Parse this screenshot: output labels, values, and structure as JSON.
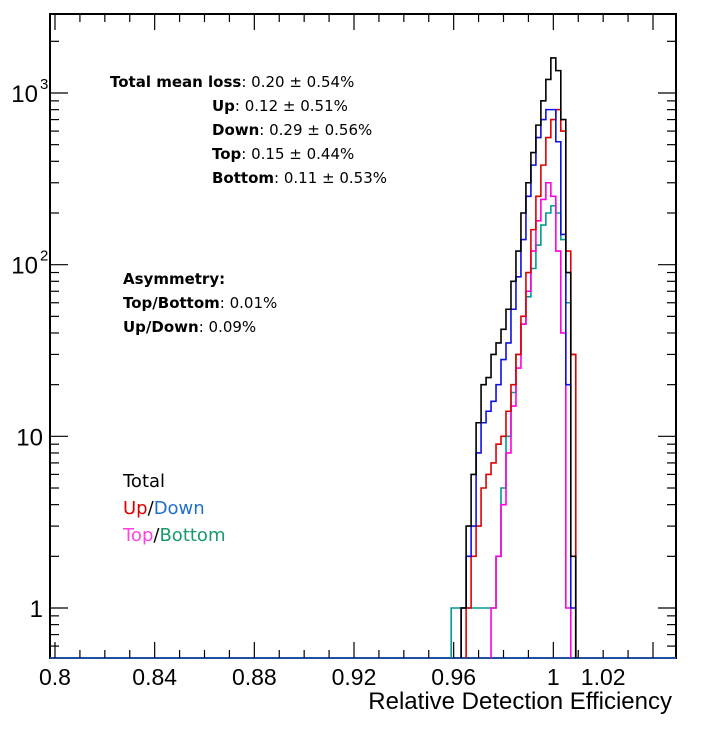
{
  "chart_data": {
    "type": "line",
    "title": "",
    "xlabel": "Relative Detection Efficiency",
    "ylabel": "",
    "xlim": [
      0.8,
      1.04
    ],
    "ylim": [
      0.55,
      2800
    ],
    "y_scale": "log",
    "x_ticks": [
      "0.8",
      "0.84",
      "0.88",
      "0.92",
      "0.96",
      "1",
      "1.02"
    ],
    "x_tick_values": [
      0.8,
      0.84,
      0.88,
      0.92,
      0.96,
      1.0,
      1.02
    ],
    "y_ticks": [
      {
        "value": 1,
        "label": "1",
        "exp": ""
      },
      {
        "value": 10,
        "label": "10",
        "exp": ""
      },
      {
        "value": 100,
        "label": "10",
        "exp": "2"
      },
      {
        "value": 1000,
        "label": "10",
        "exp": "3"
      }
    ],
    "grid": false,
    "legend_placement": "middle-left",
    "series": [
      {
        "key": "total",
        "color": "#000000",
        "x": [
          0.964,
          0.966,
          0.968,
          0.97,
          0.972,
          0.974,
          0.976,
          0.978,
          0.98,
          0.982,
          0.984,
          0.986,
          0.988,
          0.99,
          0.992,
          0.994,
          0.996,
          0.998,
          1.0,
          1.002,
          1.004,
          1.006,
          1.008
        ],
        "y": [
          1,
          3,
          6,
          12,
          20,
          22,
          30,
          35,
          42,
          55,
          80,
          120,
          200,
          300,
          450,
          650,
          900,
          1200,
          1600,
          1350,
          700,
          90,
          2
        ]
      },
      {
        "key": "up",
        "color": "#e00000",
        "x": [
          0.966,
          0.968,
          0.97,
          0.972,
          0.974,
          0.976,
          0.978,
          0.98,
          0.982,
          0.984,
          0.986,
          0.988,
          0.99,
          0.992,
          0.994,
          0.996,
          0.998,
          1.0,
          1.002,
          1.004,
          1.006,
          1.008
        ],
        "y": [
          1,
          2,
          3,
          5,
          6,
          7,
          9,
          10,
          14,
          20,
          30,
          50,
          90,
          160,
          250,
          380,
          550,
          700,
          800,
          600,
          120,
          30
        ]
      },
      {
        "key": "down",
        "color": "#1010e0",
        "x": [
          0.964,
          0.966,
          0.968,
          0.97,
          0.972,
          0.974,
          0.976,
          0.978,
          0.98,
          0.982,
          0.984,
          0.986,
          0.988,
          0.99,
          0.992,
          0.994,
          0.996,
          0.998,
          1.0,
          1.002,
          1.004,
          1.006,
          1.008
        ],
        "y": [
          1,
          2,
          3,
          8,
          12,
          14,
          16,
          20,
          28,
          35,
          55,
          85,
          140,
          250,
          380,
          550,
          700,
          800,
          800,
          520,
          150,
          20,
          1
        ]
      },
      {
        "key": "top",
        "color": "#ff00e0",
        "x": [
          0.976,
          0.978,
          0.98,
          0.982,
          0.984,
          0.986,
          0.988,
          0.99,
          0.992,
          0.994,
          0.996,
          0.998,
          1.0,
          1.002,
          1.004,
          1.006
        ],
        "y": [
          1,
          2,
          4,
          8,
          15,
          25,
          45,
          70,
          120,
          180,
          240,
          300,
          250,
          120,
          40,
          1
        ]
      },
      {
        "key": "bottom",
        "color": "#009a90",
        "x": [
          0.96,
          0.962,
          0.964,
          0.966,
          0.968,
          0.97,
          0.972,
          0.974,
          0.976,
          0.978,
          0.98,
          0.982,
          0.984,
          0.986,
          0.988,
          0.99,
          0.992,
          0.994,
          0.996,
          0.998,
          1.0,
          1.002,
          1.004,
          1.006,
          1.008
        ],
        "y": [
          1,
          1,
          1,
          1,
          1,
          1,
          1,
          1,
          1,
          2,
          5,
          10,
          18,
          30,
          45,
          65,
          95,
          130,
          170,
          200,
          220,
          200,
          140,
          60,
          30
        ]
      }
    ]
  },
  "stats": {
    "total_label": "Total mean loss",
    "total_value": ": 0.20 ± 0.54%",
    "up_label": "Up",
    "up_value": ": 0.12 ± 0.51%",
    "down_label": "Down",
    "down_value": ": 0.29 ± 0.56%",
    "top_label": "Top",
    "top_value": ": 0.15 ± 0.44%",
    "bottom_label": "Bottom",
    "bottom_value": ": 0.11 ± 0.53%"
  },
  "asymmetry": {
    "title": "Asymmetry:",
    "tb_label": "Top/Bottom",
    "tb_value": ": 0.01%",
    "ud_label": "Up/Down",
    "ud_value": ": 0.09%"
  },
  "legend": {
    "total": "Total",
    "up": "Up",
    "slash1": "/",
    "down": "Down",
    "top": "Top",
    "slash2": "/",
    "bottom": "Bottom",
    "colors": {
      "total": "#000000",
      "up": "#e00000",
      "down": "#1f6fd0",
      "top": "#ff44e0",
      "bottom": "#1a9a6a"
    }
  }
}
